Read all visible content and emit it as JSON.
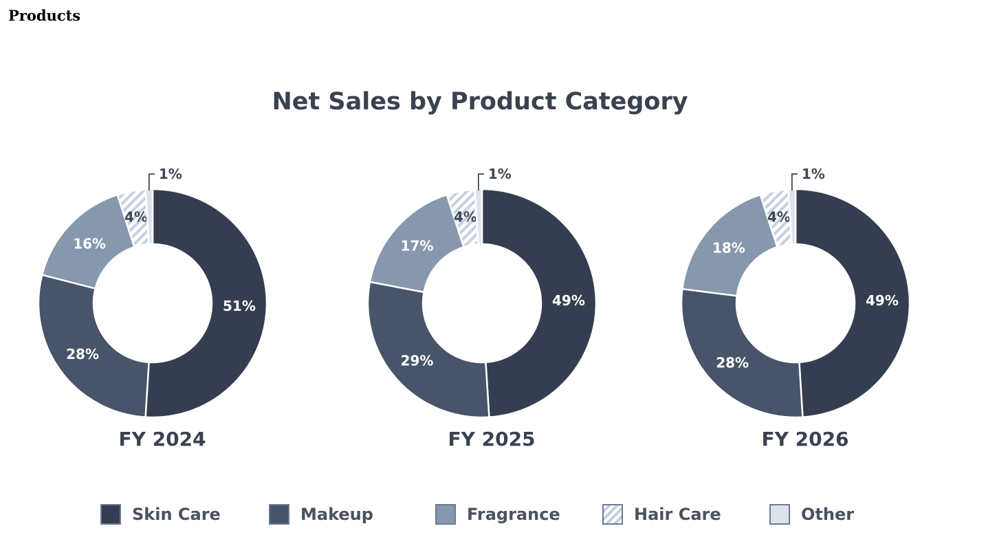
{
  "page": {
    "heading": "Products"
  },
  "colors": {
    "skin_care": "#353e50",
    "makeup": "#475469",
    "fragrance": "#8797ad",
    "hair_care_stripe": "#c6d0dc",
    "other": "#dde3ec",
    "label_light": "#ffffff",
    "label_dark": "#404754"
  },
  "chart_data": {
    "type": "donut",
    "title": "Net Sales by Product Category",
    "legend_position": "bottom",
    "categories": [
      "Skin Care",
      "Makeup",
      "Fragrance",
      "Hair Care",
      "Other"
    ],
    "series": [
      {
        "name": "FY 2024",
        "values": [
          51,
          28,
          16,
          4,
          1
        ],
        "labels": [
          "51%",
          "28%",
          "16%",
          "4%",
          "1%"
        ]
      },
      {
        "name": "FY 2025",
        "values": [
          49,
          29,
          17,
          4,
          1
        ],
        "labels": [
          "49%",
          "29%",
          "17%",
          "4%",
          "1%"
        ]
      },
      {
        "name": "FY 2026",
        "values": [
          49,
          28,
          18,
          4,
          1
        ],
        "labels": [
          "49%",
          "28%",
          "18%",
          "4%",
          "1%"
        ]
      }
    ]
  },
  "legend": {
    "items": [
      {
        "label": "Skin Care",
        "icon": "square-swatch"
      },
      {
        "label": "Makeup",
        "icon": "square-swatch"
      },
      {
        "label": "Fragrance",
        "icon": "square-swatch"
      },
      {
        "label": "Hair Care",
        "icon": "hatched-swatch"
      },
      {
        "label": "Other",
        "icon": "square-swatch"
      }
    ]
  }
}
